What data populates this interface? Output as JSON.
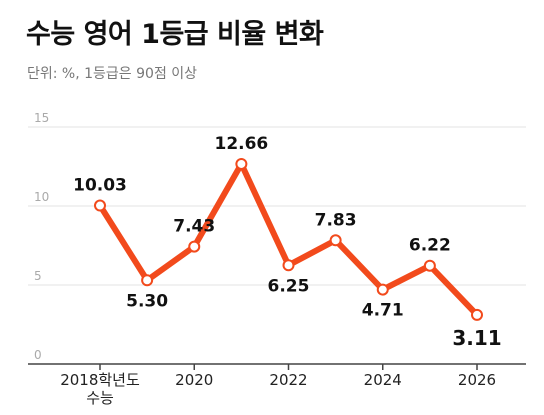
{
  "header": {
    "title": "수능 영어 1등급 비율 변화",
    "subtitle": "단위: %, 1등급은 90점 이상"
  },
  "chart_data": {
    "type": "line",
    "title": "수능 영어 1등급 비율 변화",
    "subtitle": "단위: %, 1등급은 90점 이상",
    "xlabel": "",
    "ylabel": "",
    "ylim": [
      0,
      15
    ],
    "yticks": [
      0,
      5,
      10,
      15
    ],
    "grid": true,
    "x": [
      2018,
      2019,
      2020,
      2021,
      2022,
      2023,
      2024,
      2025,
      2026
    ],
    "xticks": [
      {
        "x": 2018,
        "lines": [
          "2018학년도",
          "수능"
        ]
      },
      {
        "x": 2020,
        "lines": [
          "2020"
        ]
      },
      {
        "x": 2022,
        "lines": [
          "2022"
        ]
      },
      {
        "x": 2024,
        "lines": [
          "2024"
        ]
      },
      {
        "x": 2026,
        "lines": [
          "2026"
        ]
      }
    ],
    "series": [
      {
        "values": [
          10.03,
          5.3,
          7.43,
          12.66,
          6.25,
          7.83,
          4.71,
          6.22,
          3.11
        ],
        "labels": [
          "10.03",
          "5.30",
          "7.43",
          "12.66",
          "6.25",
          "7.83",
          "4.71",
          "6.22",
          "3.11"
        ],
        "label_pos": [
          "above",
          "below",
          "above",
          "above",
          "below",
          "above",
          "below",
          "above",
          "below"
        ],
        "color": "#f24a1c"
      }
    ],
    "colors": {
      "line": "#f24a1c",
      "marker_fill": "#ffffff",
      "grid": "#e3e3e3",
      "baseline": "#444444"
    }
  }
}
